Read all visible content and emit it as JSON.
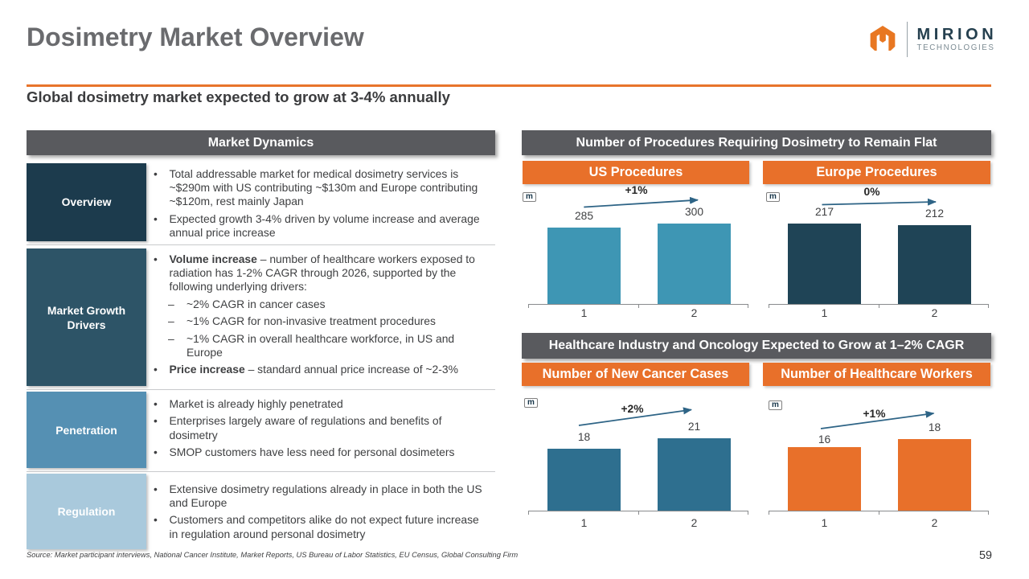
{
  "slide": {
    "title": "Dosimetry Market Overview",
    "subtitle": "Global dosimetry market expected to grow at 3-4% annually",
    "page_number": "59",
    "source": "Source: Market participant interviews, National Cancer Institute, Market Reports, US Bureau of Labor Statistics, EU Census, Global Consulting Firm",
    "accent_color": "#E8742B"
  },
  "logo": {
    "wordmark": "MIRION",
    "subtext": "TECHNOLOGIES",
    "mark_icon": "mirion-m-hexagon",
    "orange": "#E87722",
    "navy": "#25404F"
  },
  "left_panel": {
    "header": "Market Dynamics",
    "rows": [
      {
        "label": "Overview",
        "label_bg": "#1C3B4D",
        "bullets": [
          {
            "lead": "",
            "text": "Total addressable market for medical dosimetry services is ~$290m with US contributing ~$130m and Europe contributing ~$120m, rest mainly Japan"
          },
          {
            "lead": "",
            "text": "Expected growth 3-4% driven by volume increase and average annual price increase"
          }
        ]
      },
      {
        "label": "Market Growth Drivers",
        "label_bg": "#2D5467",
        "bullets": [
          {
            "lead": "Volume increase",
            "text": " – number of healthcare workers exposed to radiation has 1-2% CAGR through 2026, supported by the following underlying drivers:"
          },
          {
            "lead": "",
            "text": "~2% CAGR in cancer cases"
          },
          {
            "lead": "",
            "text": "~1% CAGR for non-invasive treatment procedures"
          },
          {
            "lead": "",
            "text": "~1% CAGR in overall healthcare workforce, in US and Europe"
          },
          {
            "lead": "Price increase",
            "text": " – standard annual price increase of ~2-3%"
          }
        ]
      },
      {
        "label": "Penetration",
        "label_bg": "#5590B3",
        "bullets": [
          {
            "lead": "",
            "text": "Market is already highly penetrated"
          },
          {
            "lead": "",
            "text": "Enterprises largely aware of regulations and benefits of dosimetry"
          },
          {
            "lead": "",
            "text": "SMOP customers have less need for personal dosimeters"
          }
        ]
      },
      {
        "label": "Regulation",
        "label_bg": "#A9C9DC",
        "bullets": [
          {
            "lead": "",
            "text": "Extensive dosimetry regulations already in place in both the US and Europe"
          },
          {
            "lead": "",
            "text": "Customers and competitors alike do not expect future increase in regulation around personal dosimetry"
          }
        ]
      }
    ]
  },
  "right_panel": {
    "sections": [
      {
        "header": "Number of Procedures Requiring Dosimetry to Remain Flat",
        "charts": [
          {
            "title": "US Procedures",
            "unit": "m",
            "growth_label": "+1%",
            "categories": [
              "1",
              "2"
            ],
            "values": [
              285,
              300
            ],
            "value_labels": [
              "285",
              "300"
            ],
            "bar_color": "#3E96B4"
          },
          {
            "title": "Europe Procedures",
            "unit": "m",
            "growth_label": "0%",
            "categories": [
              "1",
              "2"
            ],
            "values": [
              217,
              212
            ],
            "value_labels": [
              "217",
              "212"
            ],
            "bar_color": "#1F4456"
          }
        ]
      },
      {
        "header": "Healthcare Industry and Oncology Expected to Grow at 1–2% CAGR",
        "charts": [
          {
            "title": "Number of New Cancer Cases",
            "unit": "m",
            "growth_label": "+2%",
            "categories": [
              "1",
              "2"
            ],
            "values": [
              18,
              21
            ],
            "value_labels": [
              "18",
              "21"
            ],
            "bar_color": "#2E6F8F"
          },
          {
            "title": "Number of Healthcare Workers",
            "unit": "m",
            "growth_label": "+1%",
            "categories": [
              "1",
              "2"
            ],
            "values": [
              16,
              18
            ],
            "value_labels": [
              "16",
              "18"
            ],
            "bar_color": "#E8702A"
          }
        ]
      }
    ]
  },
  "chart_data": [
    {
      "type": "bar",
      "title": "US Procedures",
      "categories": [
        "1",
        "2"
      ],
      "values": [
        285,
        300
      ],
      "unit": "m",
      "annotation": "+1%",
      "ylim": [
        0,
        300
      ]
    },
    {
      "type": "bar",
      "title": "Europe Procedures",
      "categories": [
        "1",
        "2"
      ],
      "values": [
        217,
        212
      ],
      "unit": "m",
      "annotation": "0%",
      "ylim": [
        0,
        217
      ]
    },
    {
      "type": "bar",
      "title": "Number of New Cancer Cases",
      "categories": [
        "1",
        "2"
      ],
      "values": [
        18,
        21
      ],
      "unit": "m",
      "annotation": "+2%",
      "ylim": [
        0,
        21
      ]
    },
    {
      "type": "bar",
      "title": "Number of Healthcare Workers",
      "categories": [
        "1",
        "2"
      ],
      "values": [
        16,
        18
      ],
      "unit": "m",
      "annotation": "+1%",
      "ylim": [
        0,
        18
      ]
    }
  ]
}
